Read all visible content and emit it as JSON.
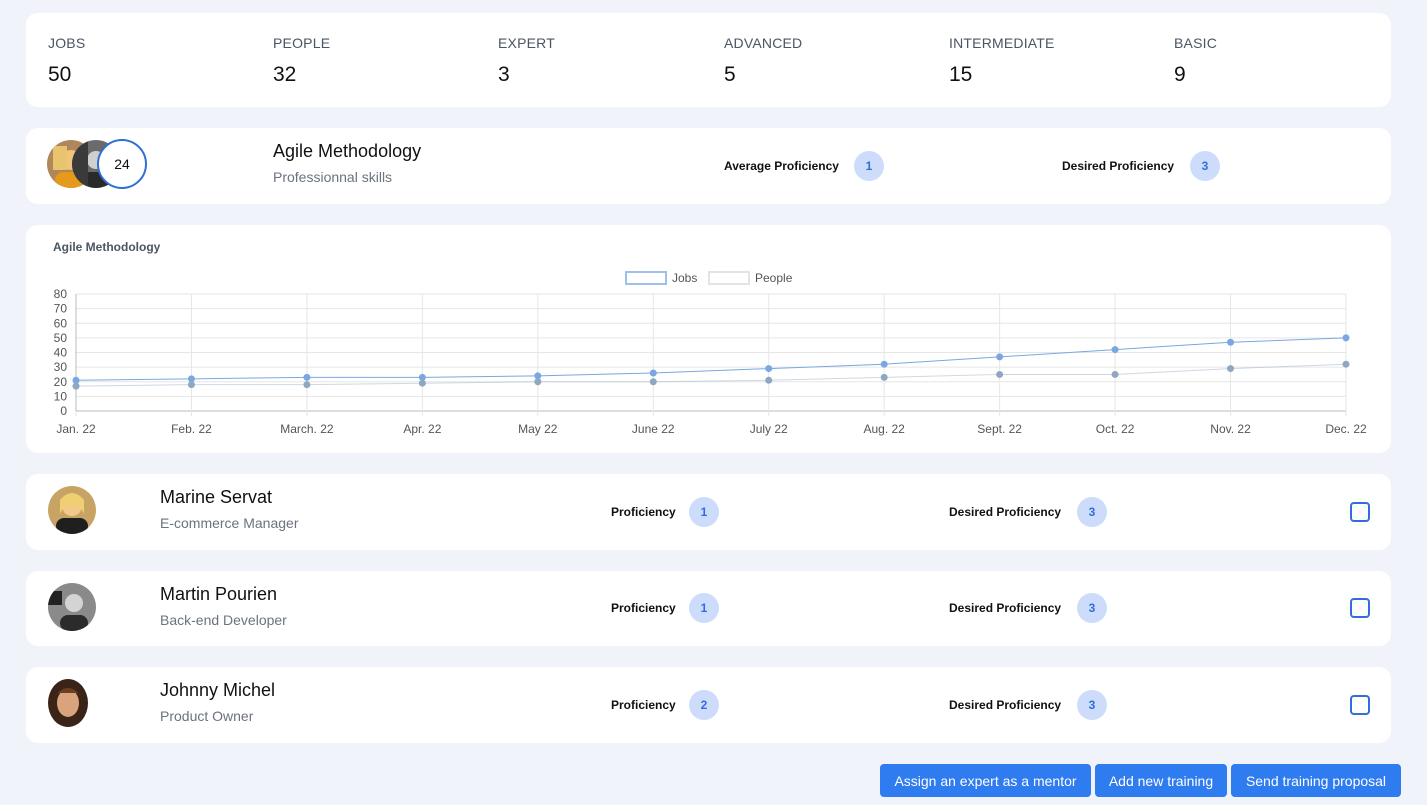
{
  "stats": [
    {
      "label": "JOBS",
      "value": "50"
    },
    {
      "label": "PEOPLE",
      "value": "32"
    },
    {
      "label": "EXPERT",
      "value": "3"
    },
    {
      "label": "ADVANCED",
      "value": "5"
    },
    {
      "label": "INTERMEDIATE",
      "value": "15"
    },
    {
      "label": "BASIC",
      "value": "9"
    }
  ],
  "skill": {
    "name": "Agile Methodology",
    "category": "Professionnal skills",
    "people_count": "24",
    "avg_label": "Average Proficiency",
    "avg_value": "1",
    "desired_label": "Desired Proficiency",
    "desired_value": "3"
  },
  "chart_data": {
    "type": "line",
    "title": "Agile Methodology",
    "categories": [
      "Jan. 22",
      "Feb. 22",
      "March. 22",
      "Apr. 22",
      "May 22",
      "June 22",
      "July 22",
      "Aug. 22",
      "Sept. 22",
      "Oct. 22",
      "Nov. 22",
      "Dec. 22"
    ],
    "series": [
      {
        "name": "Jobs",
        "values": [
          21,
          22,
          23,
          23,
          24,
          26,
          29,
          32,
          37,
          42,
          47,
          50
        ],
        "color": "#7aa7e0"
      },
      {
        "name": "People",
        "values": [
          17,
          18,
          18,
          19,
          20,
          20,
          21,
          23,
          25,
          25,
          29,
          32
        ],
        "color": "#8fa8c0"
      }
    ],
    "ylim": [
      0,
      80
    ],
    "yticks": [
      "0",
      "10",
      "20",
      "30",
      "40",
      "50",
      "60",
      "70",
      "80"
    ],
    "grid": true,
    "legend": "top-center"
  },
  "people": [
    {
      "name": "Marine Servat",
      "role": "E-commerce Manager",
      "prof_label": "Proficiency",
      "prof": "1",
      "desired_label": "Desired Proficiency",
      "desired": "3"
    },
    {
      "name": "Martin Pourien",
      "role": "Back-end Developer",
      "prof_label": "Proficiency",
      "prof": "1",
      "desired_label": "Desired Proficiency",
      "desired": "3"
    },
    {
      "name": "Johnny Michel",
      "role": "Product Owner",
      "prof_label": "Proficiency",
      "prof": "2",
      "desired_label": "Desired Proficiency",
      "desired": "3"
    }
  ],
  "actions": {
    "mentor": "Assign an expert as a mentor",
    "training": "Add new training",
    "proposal": "Send training proposal"
  },
  "colors": {
    "accent": "#2f7bf0",
    "pill_bg": "#cddcfb",
    "page_bg": "#f0f4fa"
  },
  "icons": {
    "avatar_1": "person-photo-blonde",
    "avatar_2": "person-photo-bw",
    "avatar_3": "person-photo-dark"
  }
}
